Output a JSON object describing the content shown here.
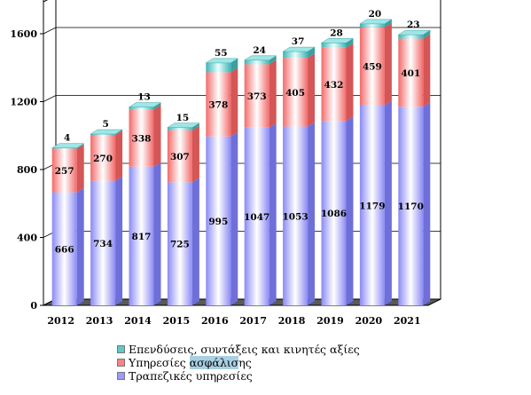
{
  "chart_data": {
    "type": "bar",
    "stacked": true,
    "categories": [
      "2012",
      "2013",
      "2014",
      "2015",
      "2016",
      "2017",
      "2018",
      "2019",
      "2020",
      "2021"
    ],
    "series": [
      {
        "name": "Τραπεζικές υπηρεσίες",
        "values": [
          666,
          734,
          817,
          725,
          995,
          1047,
          1053,
          1086,
          1179,
          1170
        ],
        "color": "#9b9bff"
      },
      {
        "name": "Υπηρεσίες ασφάλισης",
        "values": [
          257,
          270,
          338,
          307,
          378,
          373,
          405,
          432,
          459,
          401
        ],
        "color": "#ff8080"
      },
      {
        "name": "Επενδύσεις, συντάξεις και κινητές αξίες",
        "values": [
          4,
          5,
          13,
          15,
          55,
          24,
          37,
          28,
          20,
          23
        ],
        "color": "#5fc9c9"
      }
    ],
    "yticks": [
      0,
      400,
      800,
      1200,
      1600
    ],
    "ylim": [
      0,
      1600
    ],
    "grid": true,
    "legend_position": "bottom"
  },
  "legend": {
    "item_0": "Επενδύσεις, συντάξεις και κινητές αξίες",
    "item_1_pre": "Υπηρεσίες ",
    "item_1_hl": "ασφάλισ",
    "item_1_post": "ης",
    "item_2": "Τραπεζικές υπηρεσίες"
  }
}
